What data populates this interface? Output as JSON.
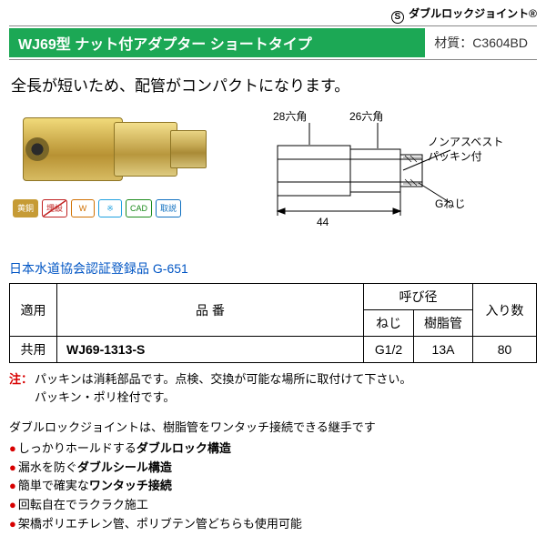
{
  "brand": {
    "logo_letter": "S",
    "brand_text": "ダブルロックジョイント®"
  },
  "header": {
    "model_title": "WJ69型  ナット付アダプター ショートタイプ",
    "material_label": "材質：",
    "material_value": "C3604BD"
  },
  "description": "全長が短いため、配管がコンパクトになります。",
  "badges": {
    "brass": {
      "text": "黄銅",
      "fg": "#ffffff",
      "bg": "#c69b35",
      "border": "#c69b35"
    },
    "maisetsu": {
      "text": "埋設",
      "fg": "#c02020",
      "bg": "#ffffff",
      "border": "#c02020",
      "strike": true
    },
    "wmark": {
      "text": "W",
      "fg": "#d07000",
      "bg": "#ffffff",
      "border": "#d07000"
    },
    "frost": {
      "text": "※",
      "fg": "#1ea0e0",
      "bg": "#ffffff",
      "border": "#1ea0e0"
    },
    "cad": {
      "text": "CAD",
      "fg": "#1a8a1a",
      "bg": "#ffffff",
      "border": "#1a8a1a"
    },
    "doc": {
      "text": "取説",
      "fg": "#1070c0",
      "bg": "#ffffff",
      "border": "#1070c0"
    }
  },
  "diagram": {
    "hex_left": "28六角",
    "hex_right": "26六角",
    "packing_label1": "ノンアスベスト",
    "packing_label2": "パッキン付",
    "thread_label": "Gねじ",
    "length": "44"
  },
  "cert": "日本水道協会認証登録品  G-651",
  "table": {
    "headers": {
      "apply": "適用",
      "part_no": "品 番",
      "nominal": "呼び径",
      "thread": "ねじ",
      "pipe": "樹脂管",
      "qty": "入り数"
    },
    "row": {
      "apply": "共用",
      "part_no": "WJ69-1313-S",
      "thread": "G1/2",
      "pipe": "13A",
      "qty": "80"
    }
  },
  "note": {
    "label": "注：",
    "line1": "パッキンは消耗部品です。点検、交換が可能な場所に取付けて下さい。",
    "line2": "パッキン・ポリ栓付です。"
  },
  "features": {
    "intro": "ダブルロックジョイントは、樹脂管をワンタッチ接続できる継手です",
    "items": [
      {
        "prefix": "しっかりホールドする",
        "bold": "ダブルロック構造",
        "suffix": ""
      },
      {
        "prefix": "漏水を防ぐ",
        "bold": "ダブルシール構造",
        "suffix": ""
      },
      {
        "prefix": "簡単で確実な",
        "bold": "ワンタッチ接続",
        "suffix": ""
      },
      {
        "prefix": "回転自在でラクラク施工",
        "bold": "",
        "suffix": ""
      },
      {
        "prefix": "架橋ポリエチレン管、ポリブテン管どちらも使用可能",
        "bold": "",
        "suffix": ""
      }
    ]
  }
}
